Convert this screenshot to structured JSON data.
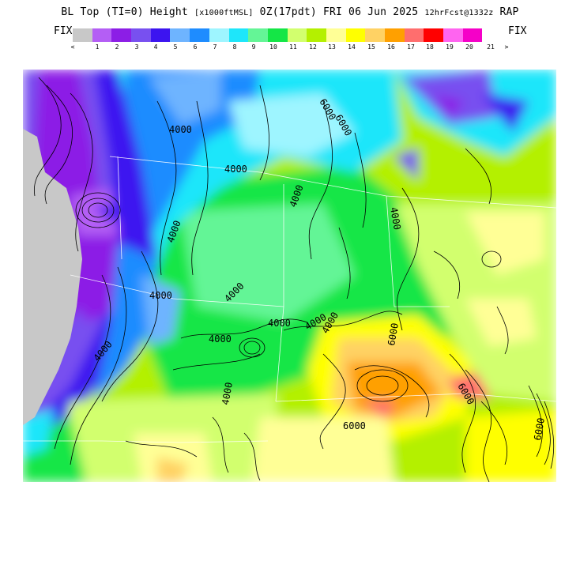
{
  "header": {
    "title_main": "BL Top (TI=0) Height",
    "title_units": "[x1000ftMSL]",
    "title_time": "0Z(17pdt) FRI 06 Jun 2025",
    "title_run": "12hrFcst@1332z",
    "title_model": "RAP"
  },
  "legend": {
    "fix_left": "FIX",
    "fix_right": "FIX",
    "colors": [
      "#c8c8c8",
      "#b45ef5",
      "#8c1ee6",
      "#7850f0",
      "#3c14f0",
      "#6eb4ff",
      "#1e8cff",
      "#9ef5ff",
      "#1ee6fa",
      "#64f596",
      "#14e646",
      "#d2ff6e",
      "#b4f000",
      "#ffff96",
      "#ffff00",
      "#ffd264",
      "#ffa000",
      "#ff6e6e",
      "#ff0000",
      "#ff64f0",
      "#f500c8"
    ],
    "tick_labels": [
      "<",
      "1",
      "2",
      "3",
      "4",
      "5",
      "6",
      "7",
      "8",
      "9",
      "10",
      "11",
      "12",
      "13",
      "14",
      "15",
      "16",
      "17",
      "18",
      "19",
      "20",
      "21",
      ">"
    ]
  },
  "map": {
    "contour_labels": [
      "6000",
      "6000",
      "4000",
      "4000",
      "4000",
      "4000",
      "4000",
      "4000",
      "4000",
      "4000",
      "4000",
      "4000",
      "4000",
      "4000",
      "4000",
      "6000",
      "6000",
      "6000",
      "6000"
    ]
  }
}
